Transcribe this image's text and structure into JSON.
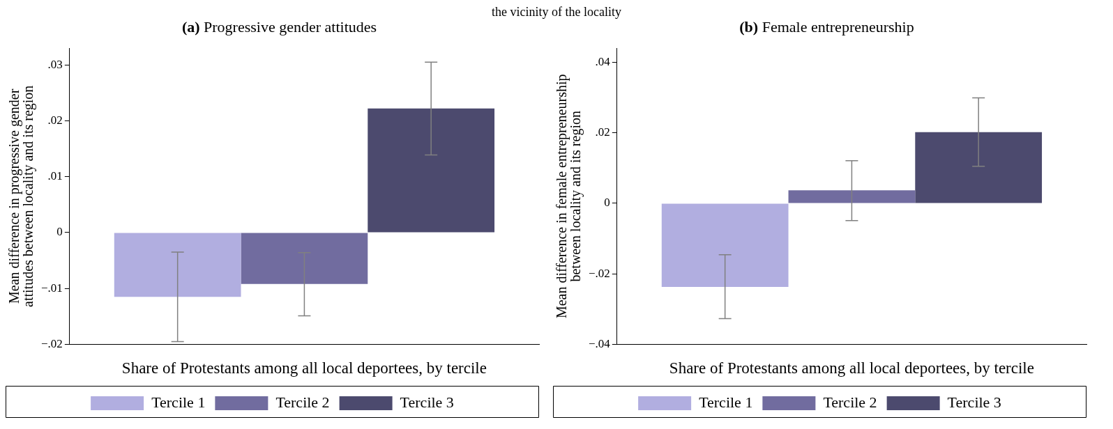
{
  "chart_data": [
    {
      "type": "bar",
      "title": "(a) Progressive gender attitudes",
      "annotations": [
        "the vicinity of the locality"
      ],
      "xlabel": "Share of Protestants among all local deportees, by tercile",
      "ylabel": "Mean difference in progressive gender\nattitudes between locality and its region",
      "categories": [
        null
      ],
      "series": [
        {
          "name": "Tercile 1",
          "color": "#b1aee0",
          "values": [
            -0.0115
          ],
          "errors": [
            [
              -0.0195,
              -0.0035
            ]
          ]
        },
        {
          "name": "Tercile 2",
          "color": "#716c9f",
          "values": [
            -0.0092
          ],
          "errors": [
            [
              -0.0149,
              -0.0036
            ]
          ]
        },
        {
          "name": "Tercile 3",
          "color": "#4c4a6e",
          "values": [
            0.0222
          ],
          "errors": [
            [
              0.0139,
              0.0305
            ]
          ]
        }
      ],
      "ylim": [
        -0.02,
        0.033
      ],
      "yticks": [
        {
          "value": -0.02,
          "label": "−.02"
        },
        {
          "value": -0.01,
          "label": "−.01"
        },
        0,
        {
          "value": 0.01,
          "label": ".01"
        },
        {
          "value": 0.02,
          "label": ".02"
        },
        {
          "value": 0.03,
          "label": ".03"
        }
      ],
      "grid": false,
      "legend": "bottom"
    },
    {
      "type": "bar",
      "title": "(b) Female entrepreneurship",
      "xlabel": "Share of Protestants among all local deportees, by tercile",
      "ylabel": "Mean difference in female entrepreneurship\nbetween locality and its region",
      "categories": [
        null
      ],
      "series": [
        {
          "name": "Tercile 1",
          "color": "#b1aee0",
          "values": [
            -0.0237
          ],
          "errors": [
            [
              -0.0327,
              -0.0146
            ]
          ]
        },
        {
          "name": "Tercile 2",
          "color": "#716c9f",
          "values": [
            0.0037
          ],
          "errors": [
            [
              -0.0049,
              0.0121
            ]
          ]
        },
        {
          "name": "Tercile 3",
          "color": "#4c4a6e",
          "values": [
            0.0202
          ],
          "errors": [
            [
              0.0105,
              0.0299
            ]
          ]
        }
      ],
      "ylim": [
        -0.04,
        0.044
      ],
      "yticks": [
        {
          "value": -0.04,
          "label": "−.04"
        },
        {
          "value": -0.02,
          "label": "−.02"
        },
        0,
        {
          "value": 0.02,
          "label": ".02"
        },
        {
          "value": 0.04,
          "label": ".04"
        }
      ],
      "grid": false,
      "legend": "bottom"
    }
  ]
}
